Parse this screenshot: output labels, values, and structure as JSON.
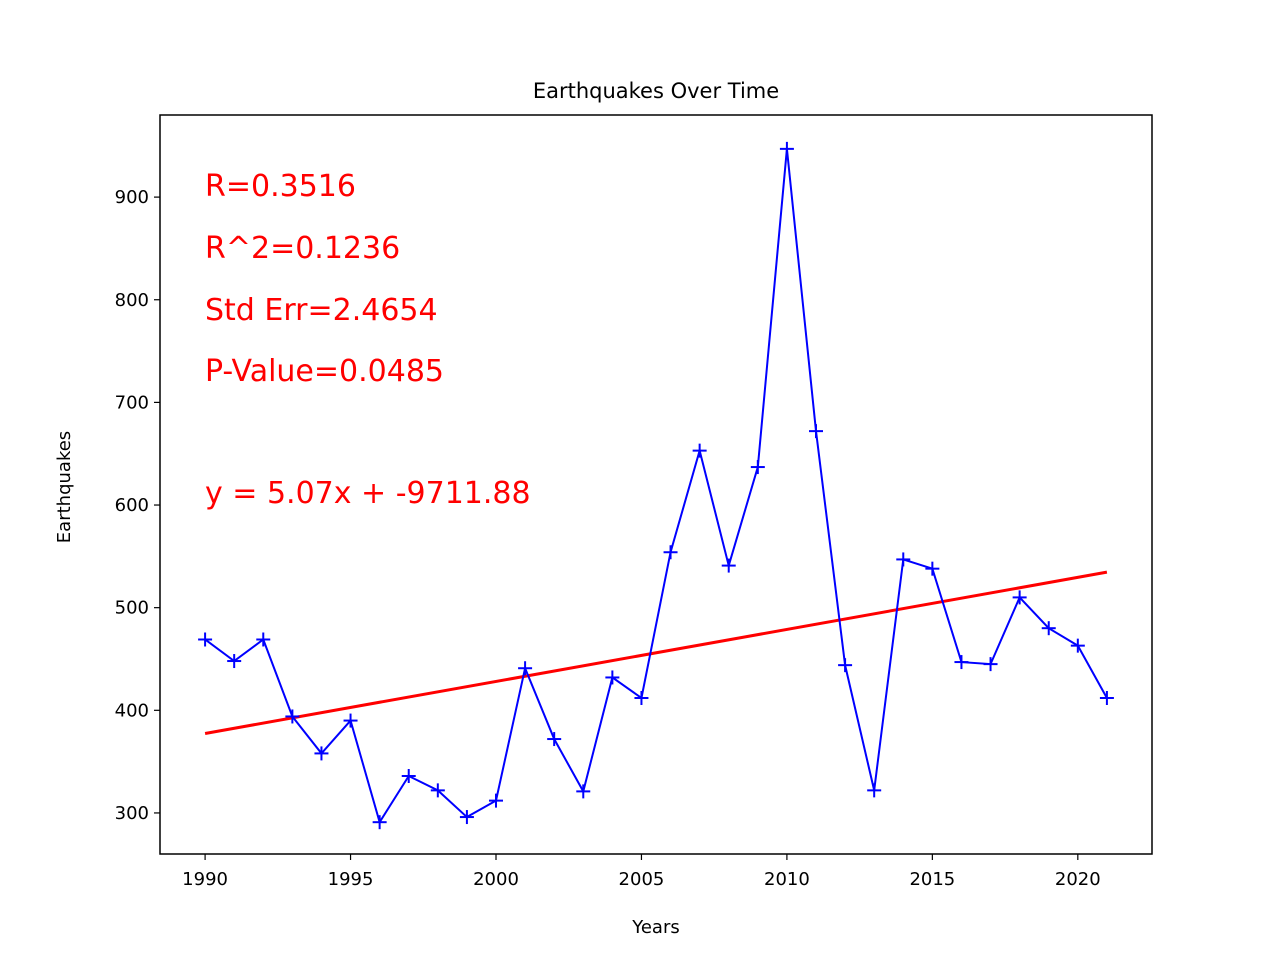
{
  "chart_data": {
    "type": "line",
    "title": "Earthquakes Over Time",
    "xlabel": "Years",
    "ylabel": "Earthquakes",
    "xlim": [
      1988.45,
      2022.55
    ],
    "ylim": [
      260,
      980
    ],
    "xticks": [
      1990,
      1995,
      2000,
      2005,
      2010,
      2015,
      2020
    ],
    "yticks": [
      300,
      400,
      500,
      600,
      700,
      800,
      900
    ],
    "grid": false,
    "legend": "none",
    "series": [
      {
        "marker": "+",
        "color": "#0000ff",
        "x": [
          1990,
          1991,
          1992,
          1993,
          1994,
          1995,
          1996,
          1997,
          1998,
          1999,
          2000,
          2001,
          2002,
          2003,
          2004,
          2005,
          2006,
          2007,
          2008,
          2009,
          2010,
          2011,
          2012,
          2013,
          2014,
          2015,
          2016,
          2017,
          2018,
          2019,
          2020,
          2021
        ],
        "values": [
          469,
          448,
          469,
          394,
          358,
          390,
          291,
          336,
          322,
          296,
          312,
          441,
          372,
          321,
          432,
          412,
          554,
          653,
          541,
          637,
          947,
          672,
          444,
          322,
          547,
          538,
          447,
          445,
          510,
          480,
          463,
          412
        ]
      }
    ],
    "regression": {
      "color": "#ff0000",
      "slope": 5.07,
      "intercept": -9711.88,
      "x_start": 1990,
      "x_end": 2021
    },
    "annotations": [
      "R=0.3516",
      "R^2=0.1236",
      "Std Err=2.4654",
      "P-Value=0.0485",
      "y = 5.07x + -9711.88"
    ]
  }
}
